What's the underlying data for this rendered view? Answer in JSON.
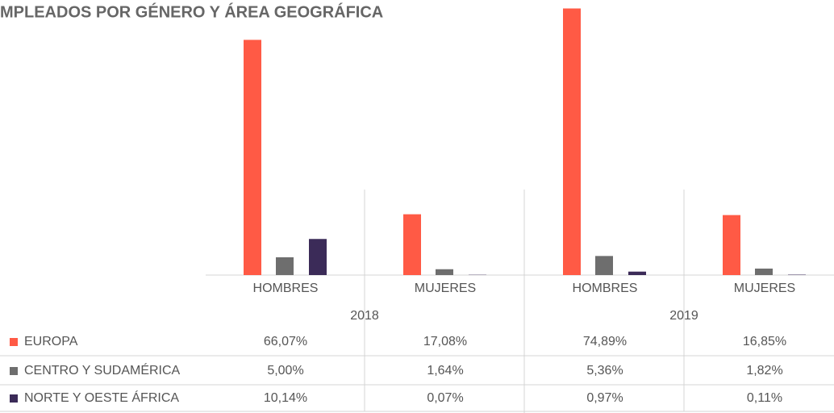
{
  "chart_data": {
    "type": "bar",
    "title": "MPLEADOS POR GÉNERO Y ÁREA GEOGRÁFICA",
    "categories": [
      "HOMBRES",
      "MUJERES",
      "HOMBRES",
      "MUJERES"
    ],
    "years": [
      "2018",
      "2019"
    ],
    "ylim": [
      0,
      75
    ],
    "series": [
      {
        "name": "EUROPA",
        "color": "#ff5a45",
        "values": [
          66.07,
          17.08,
          74.89,
          16.85
        ],
        "value_labels": [
          "66,07%",
          "17,08%",
          "74,89%",
          "16,85%"
        ]
      },
      {
        "name": "CENTRO Y SUDAMÉRICA",
        "color": "#6e6e6e",
        "values": [
          5.0,
          1.64,
          5.36,
          1.82
        ],
        "value_labels": [
          "5,00%",
          "1,64%",
          "5,36%",
          "1,82%"
        ]
      },
      {
        "name": "NORTE Y OESTE ÁFRICA",
        "color": "#3b2b58",
        "values": [
          10.14,
          0.07,
          0.97,
          0.11
        ],
        "value_labels": [
          "10,14%",
          "0,07%",
          "0,97%",
          "0,11%"
        ]
      }
    ]
  }
}
